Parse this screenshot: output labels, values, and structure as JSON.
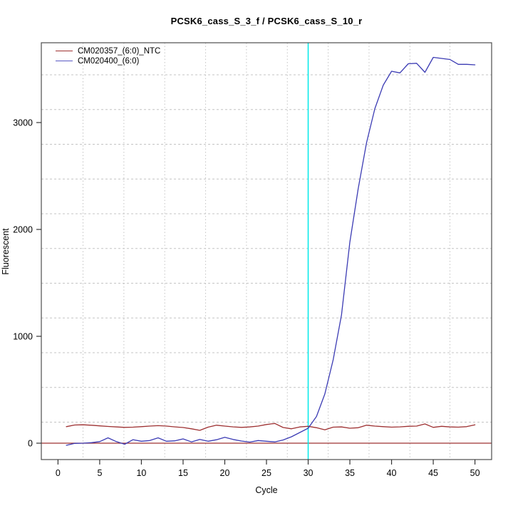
{
  "title": "PCSK6_cass_S_3_f / PCSK6_cass_S_10_r",
  "axes": {
    "xlabel": "Cycle",
    "ylabel": "Fluorescent"
  },
  "legend": {
    "items": [
      {
        "label": "CM020357_(6:0)_NTC",
        "color": "#9e3132"
      },
      {
        "label": "CM020400_(6:0)",
        "color": "#5a5ac4"
      }
    ]
  },
  "chart_data": {
    "type": "line",
    "title": "PCSK6_cass_S_3_f / PCSK6_cass_S_10_r",
    "xlabel": "Cycle",
    "ylabel": "Fluorescent",
    "xlim": [
      -2,
      52
    ],
    "ylim": [
      -153.3,
      3746.7
    ],
    "xticks": [
      0,
      5,
      10,
      15,
      20,
      25,
      30,
      35,
      40,
      45,
      50
    ],
    "yticks": [
      0,
      1000,
      2000,
      3000
    ],
    "grid": {
      "style": "dotted",
      "color": "#c4c4c4",
      "x_values": [
        3.0,
        7.9,
        12.8,
        17.7,
        22.6,
        27.5,
        32.4,
        37.3,
        42.2,
        47.0
      ],
      "y_values": [
        197,
        522,
        847,
        1172,
        1497,
        1822,
        2147,
        2472,
        2797,
        3122,
        3447
      ]
    },
    "threshold_line": {
      "y": 0,
      "color": "#9e3132"
    },
    "ct_line": {
      "x": 30,
      "color": "#00e8e8"
    },
    "x": [
      1,
      2,
      3,
      4,
      5,
      6,
      7,
      8,
      9,
      10,
      11,
      12,
      13,
      14,
      15,
      16,
      17,
      18,
      19,
      20,
      21,
      22,
      23,
      24,
      25,
      26,
      27,
      28,
      29,
      30,
      31,
      32,
      33,
      34,
      35,
      36,
      37,
      38,
      39,
      40,
      41,
      42,
      43,
      44,
      45,
      46,
      47,
      48,
      49,
      50
    ],
    "series": [
      {
        "name": "CM020357_(6:0)_NTC",
        "color": "#9e3132",
        "values": [
          155,
          170,
          172,
          168,
          162,
          157,
          152,
          148,
          150,
          155,
          160,
          164,
          160,
          153,
          147,
          135,
          120,
          150,
          168,
          160,
          153,
          148,
          152,
          160,
          175,
          185,
          147,
          135,
          152,
          158,
          145,
          125,
          150,
          152,
          140,
          145,
          168,
          160,
          155,
          150,
          153,
          158,
          160,
          180,
          148,
          158,
          152,
          150,
          155,
          172
        ]
      },
      {
        "name": "CM020400_(6:0)",
        "color": "#3c3cb4",
        "values": [
          -20,
          -2,
          0,
          5,
          15,
          50,
          15,
          -10,
          33,
          18,
          25,
          50,
          18,
          22,
          40,
          12,
          35,
          18,
          32,
          55,
          35,
          20,
          10,
          25,
          18,
          12,
          30,
          60,
          100,
          140,
          250,
          460,
          780,
          1200,
          1880,
          2380,
          2810,
          3130,
          3350,
          3480,
          3465,
          3550,
          3555,
          3470,
          3610,
          3600,
          3590,
          3545,
          3545,
          3540
        ]
      }
    ],
    "legend_position": "top-left",
    "plot_border_color": "#4d4d4d"
  }
}
